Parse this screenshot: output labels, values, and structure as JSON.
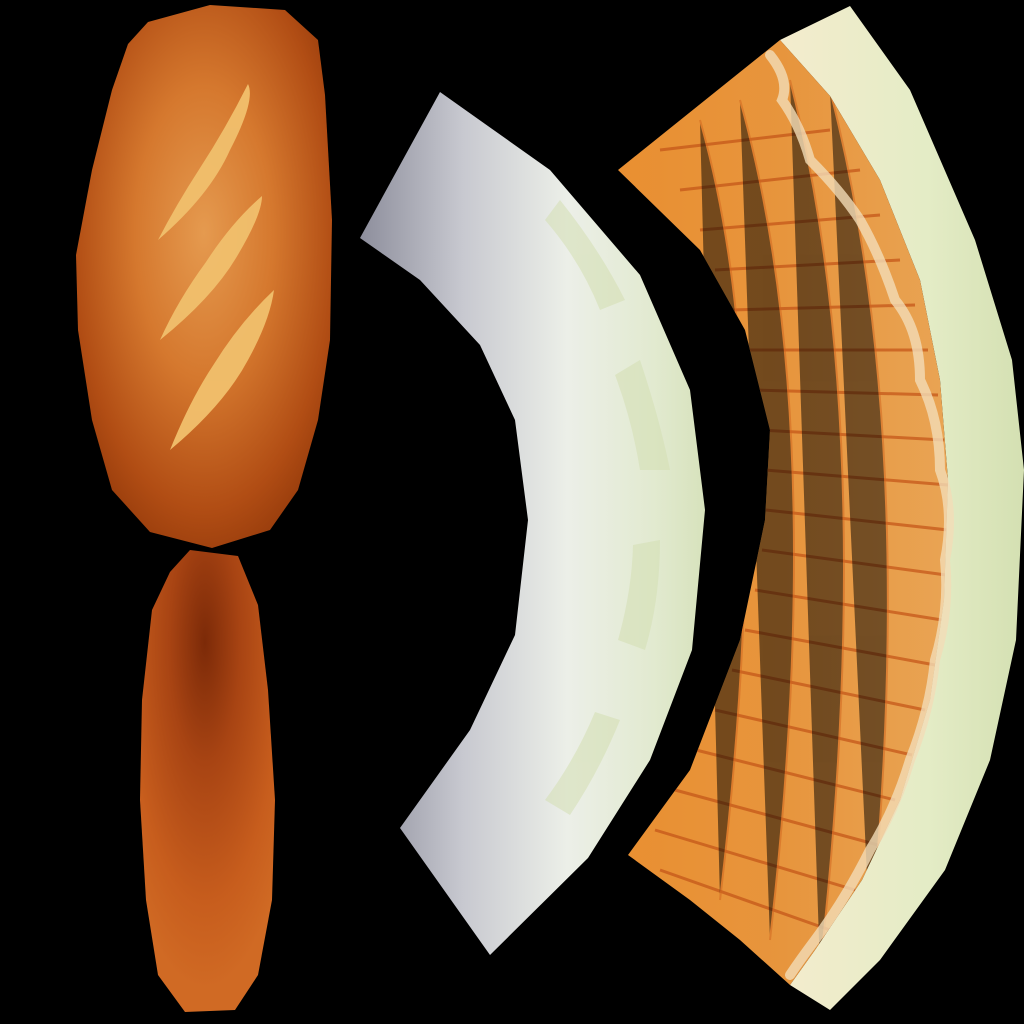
{
  "canvas": {
    "background": "#000000"
  },
  "colors": {
    "crust_light": "#cc6a22",
    "crust_dark": "#9a3c0e",
    "crust_highlight": "#e79a4a",
    "score_mark": "#f0bf6a",
    "white_edge": "#f3f7ee",
    "white_shadow": "#8a8a98",
    "crumb_green": "#dfe8c6",
    "crumb_orange": "#e38a2e",
    "crumb_stripe": "#c4571a",
    "crumb_swirl": "#f3dcb6"
  },
  "pieces": [
    {
      "name": "bread-loaf-top-piece"
    },
    {
      "name": "bread-loaf-bottom-piece"
    },
    {
      "name": "bread-crust-white-arc"
    },
    {
      "name": "bread-crumb-orange-arc"
    }
  ]
}
